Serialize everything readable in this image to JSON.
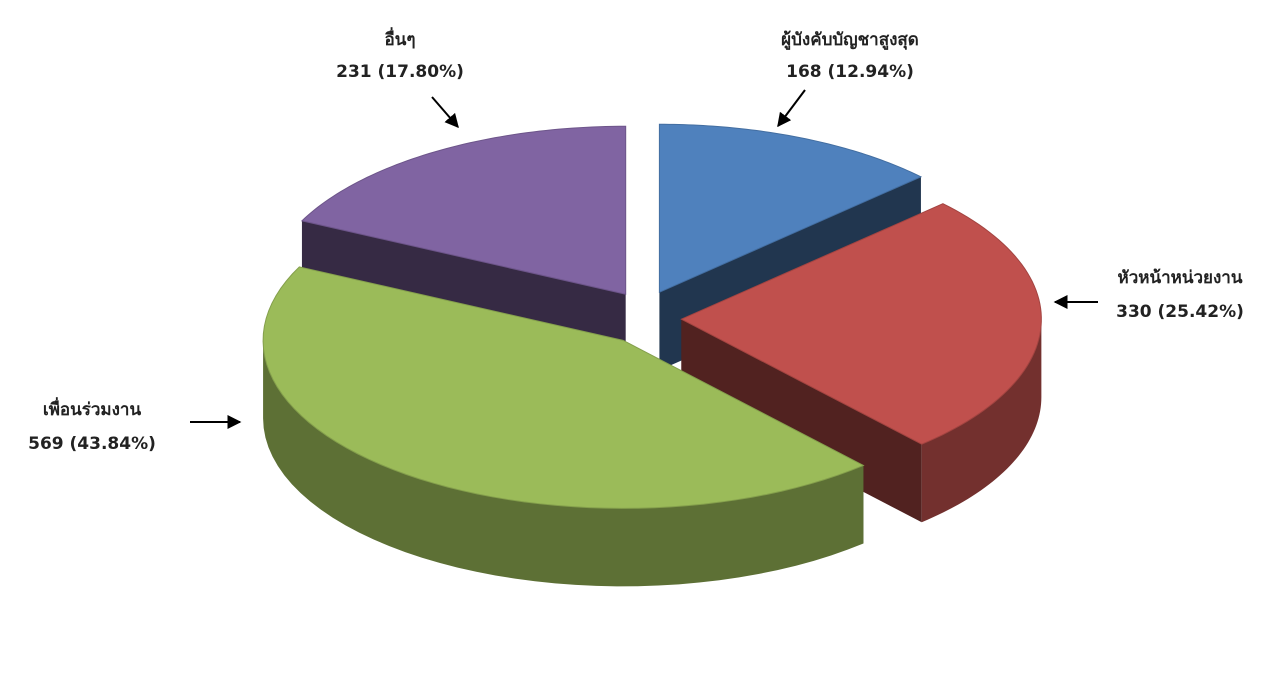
{
  "chart_data": {
    "type": "pie3d",
    "categories": [
      "ผู้บังคับบัญชาสูงสุด",
      "หัวหน้าหน่วยงาน",
      "เพื่อนร่วมงาน",
      "อื่นๆ"
    ],
    "values": [
      168,
      330,
      569,
      231
    ],
    "value_labels": [
      "168 (12.94%)",
      "330 (25.42%)",
      "569 (43.84%)",
      "231 (17.80%)"
    ],
    "colors": [
      "#4f81bd",
      "#c0504d",
      "#9bbb59",
      "#8064a2"
    ]
  }
}
